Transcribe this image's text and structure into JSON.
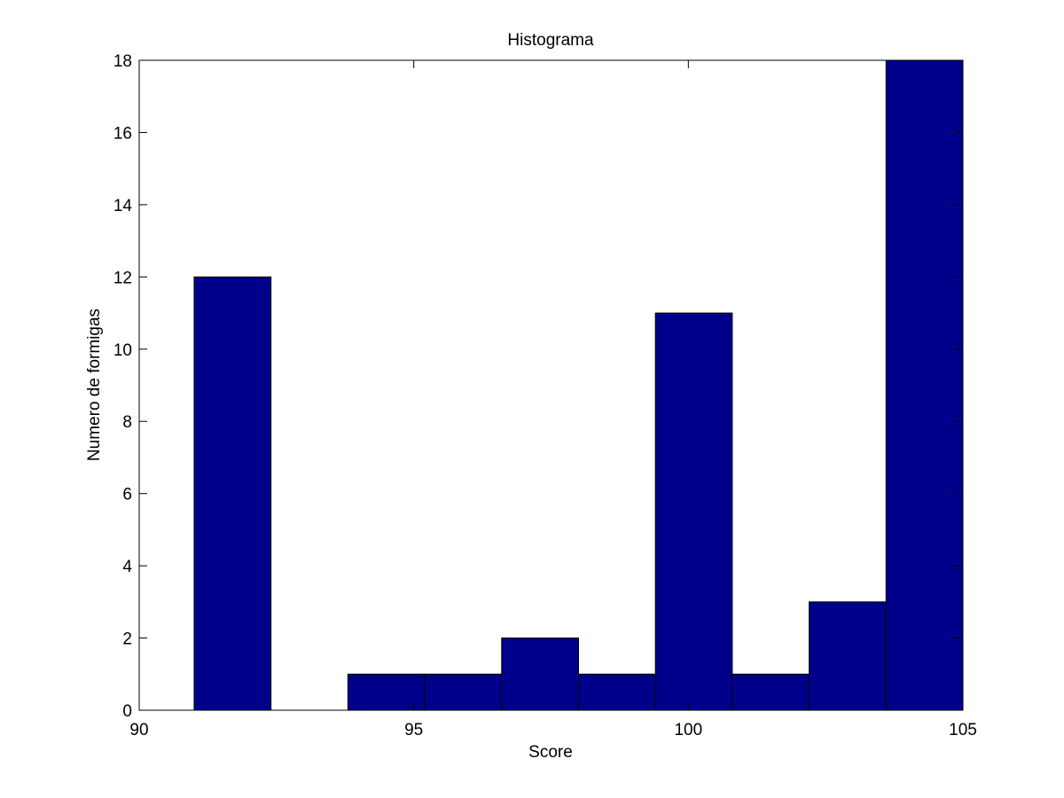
{
  "chart_data": {
    "type": "bar",
    "title": "Histograma",
    "xlabel": "Score",
    "ylabel": "Numero de formigas",
    "xlim": [
      90,
      105
    ],
    "ylim": [
      0,
      18
    ],
    "xticks": [
      90,
      95,
      100,
      105
    ],
    "yticks": [
      0,
      2,
      4,
      6,
      8,
      10,
      12,
      14,
      16,
      18
    ],
    "grid": false,
    "bins": [
      {
        "start": 91.0,
        "end": 92.4,
        "count": 12
      },
      {
        "start": 92.4,
        "end": 93.8,
        "count": 0
      },
      {
        "start": 93.8,
        "end": 95.2,
        "count": 1
      },
      {
        "start": 95.2,
        "end": 96.6,
        "count": 1
      },
      {
        "start": 96.6,
        "end": 98.0,
        "count": 2
      },
      {
        "start": 98.0,
        "end": 99.4,
        "count": 1
      },
      {
        "start": 99.4,
        "end": 100.8,
        "count": 11
      },
      {
        "start": 100.8,
        "end": 102.2,
        "count": 1
      },
      {
        "start": 102.2,
        "end": 103.6,
        "count": 3
      },
      {
        "start": 103.6,
        "end": 105.0,
        "count": 18
      }
    ],
    "bar_color": "#00008b",
    "edge_color": "#000000"
  }
}
